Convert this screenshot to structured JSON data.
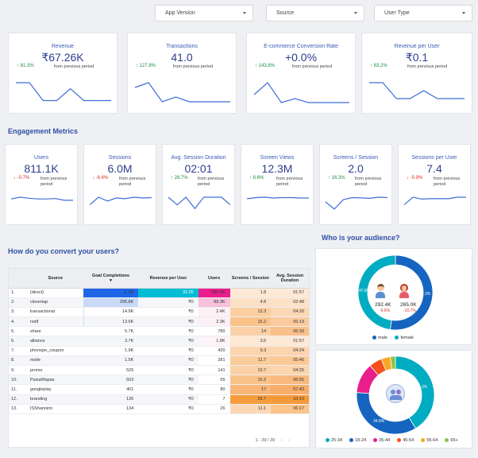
{
  "filters": [
    {
      "label": "App Version"
    },
    {
      "label": "Source"
    },
    {
      "label": "User Type"
    }
  ],
  "top_kpis": [
    {
      "title": "Revenue",
      "value": "₹67.26K",
      "change": "81.3%",
      "direction": "up",
      "from": "from previous period",
      "spark": [
        4,
        4,
        1,
        1,
        3,
        1,
        1,
        1
      ]
    },
    {
      "title": "Transactions",
      "value": "41.0",
      "change": "127.8%",
      "direction": "up",
      "from": "from previous period",
      "spark": [
        4,
        5,
        1,
        2,
        1,
        1,
        1,
        1
      ]
    },
    {
      "title": "E-commerce Conversion Rate",
      "value": "+0.0%",
      "change": "143.8%",
      "direction": "up",
      "from": "from previous period",
      "spark": [
        3,
        6,
        1,
        2,
        1,
        1,
        1,
        1
      ]
    },
    {
      "title": "Revenue per User",
      "value": "₹0.1",
      "change": "83.2%",
      "direction": "up",
      "from": "from previous period",
      "spark": [
        3,
        3,
        1,
        1,
        2,
        1,
        1,
        1
      ]
    }
  ],
  "engagement": {
    "title": "Engagement Metrics",
    "kpis": [
      {
        "title": "Users",
        "value": "811.1K",
        "change": "-0.7%",
        "direction": "down",
        "from": "from previous period",
        "spark": [
          5,
          5.5,
          5.2,
          5,
          5,
          5.1,
          4.6,
          4.6
        ]
      },
      {
        "title": "Sessions",
        "value": "6.0M",
        "change": "-6.6%",
        "direction": "down",
        "from": "from previous period",
        "spark": [
          3,
          5,
          4,
          4.8,
          4.6,
          5,
          4.8,
          4.9
        ]
      },
      {
        "title": "Avg. Session Duration",
        "value": "02:01",
        "change": "28.7%",
        "direction": "up",
        "from": "from previous period",
        "spark": [
          5,
          3,
          5,
          2,
          5,
          5,
          5,
          3
        ]
      },
      {
        "title": "Screen Views",
        "value": "12.3M",
        "change": "8.6%",
        "direction": "up",
        "from": "from previous period",
        "spark": [
          4.5,
          4.8,
          4.9,
          4.7,
          4.8,
          4.8,
          4.7,
          4.7
        ]
      },
      {
        "title": "Screens / Session",
        "value": "2.0",
        "change": "16.3%",
        "direction": "up",
        "from": "from previous period",
        "spark": [
          4,
          2,
          4.6,
          5.2,
          5.1,
          5,
          5.3,
          5.2
        ]
      },
      {
        "title": "Sessions per User",
        "value": "7.4",
        "change": "-5.9%",
        "direction": "down",
        "from": "from previous period",
        "spark": [
          3,
          5,
          4.5,
          4.6,
          4.6,
          4.6,
          5,
          5
        ]
      }
    ]
  },
  "convert": {
    "title": "How do you convert your users?",
    "headers": [
      "",
      "Source",
      "Goal Completions",
      "Revenue per User",
      "Users",
      "Screens / Session",
      "Avg. Session Duration"
    ],
    "sort_indicator": "▾",
    "rows": [
      [
        "1.",
        "(direct)",
        "1.7M",
        "32.05",
        "285.5K",
        "1.8",
        "01:57"
      ],
      [
        "2.",
        "clevertap",
        "295.8K",
        "₹0",
        "89.3K",
        "4.8",
        "02:48"
      ],
      [
        "3.",
        "transactional",
        "14.9K",
        "₹0",
        "2.4K",
        "13.3",
        "04:20"
      ],
      [
        "4.",
        "notif",
        "13.6K",
        "₹0",
        "2.3K",
        "15.2",
        "05:19"
      ],
      [
        "5.",
        "share",
        "5.7K",
        "₹0",
        "780",
        "14",
        "06:33"
      ],
      [
        "6.",
        "alliance",
        "3.7K",
        "₹0",
        "1.8K",
        "3.6",
        "01:57"
      ],
      [
        "7.",
        "phonepe_coupon",
        "1.9K",
        "₹0",
        "420",
        "9.3",
        "04:24"
      ],
      [
        "8.",
        "msite",
        "1.5K",
        "₹0",
        "281",
        "11.7",
        "05:46"
      ],
      [
        "9.",
        "promo",
        "526",
        "₹0",
        "141",
        "10.7",
        "04:25"
      ],
      [
        "10.",
        "PaisaWapas",
        "503",
        "₹0",
        "65",
        "15.2",
        "06:55"
      ],
      [
        "11.",
        "googleplay",
        "401",
        "₹0",
        "80",
        "17",
        "07:43"
      ],
      [
        "12.",
        "branding",
        "136",
        "₹0",
        "7",
        "25.7",
        "10:10"
      ],
      [
        "13.",
        "ISShanninn",
        "134",
        "₹0",
        "26",
        "11.1",
        "06:17"
      ]
    ],
    "goal_bar_fraction": [
      1,
      0.17,
      0.009,
      0.008,
      0.003,
      0.002,
      0.001,
      0.001,
      0,
      0,
      0,
      0,
      0
    ],
    "pagination": "1 - 39 / 39"
  },
  "audience": {
    "title": "Who is your audience?",
    "gender": {
      "slices": [
        {
          "name": "male",
          "percent": 52.3,
          "color": "#1565c0"
        },
        {
          "name": "female",
          "percent": 47.8,
          "color": "#00acc1"
        }
      ],
      "male_value": "292.4K",
      "male_change": "-9.6%",
      "female_value": "265.0K",
      "female_change": "-10.7%",
      "label_left": "47.8%",
      "label_right": "52.3%"
    },
    "age": {
      "slices": [
        {
          "name": "25-34",
          "percent": 41.3,
          "color": "#00acc1"
        },
        {
          "name": "18-24",
          "percent": 34.8,
          "color": "#1565c0"
        },
        {
          "name": "35-44",
          "percent": 12.6,
          "color": "#e91e8c"
        },
        {
          "name": "45-54",
          "percent": 5.4,
          "color": "#f4511e"
        },
        {
          "name": "55-64",
          "percent": 3.8,
          "color": "#f9a825"
        },
        {
          "name": "65+",
          "percent": 2.1,
          "color": "#8bc34a"
        }
      ],
      "label_right": "41.3%",
      "label_bottom": "34.8%"
    }
  }
}
